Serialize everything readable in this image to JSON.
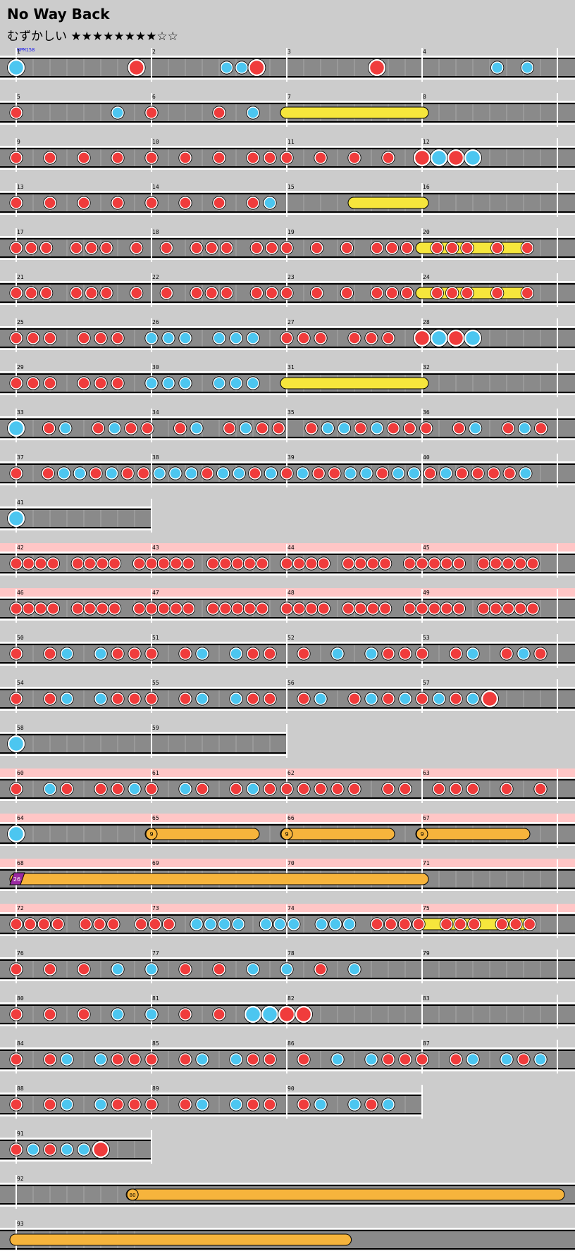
{
  "song": {
    "title": "No Way Back",
    "difficulty_label": "むずかしい",
    "stars_filled": 8,
    "stars_total": 10,
    "bpm_label": "BPM158"
  },
  "colors": {
    "background": "#cccccc",
    "lane": "#8a8a8a",
    "gogo_band": "#ffc6c6",
    "don": "#f03c3c",
    "ka": "#4cc6f0",
    "drumroll": "#f6e63c",
    "balloon": "#f6b43c",
    "kusudama": "#9a2aa0"
  },
  "note_key": {
    "d": "don (red)",
    "k": "ka (blue)",
    "D": "big don (red)",
    "K": "big ka (blue)"
  },
  "rows": [
    {
      "measures": [
        1,
        2,
        3,
        4
      ],
      "notes": "K-------D-----kkD-------D-------k-k-"
    },
    {
      "measures": [
        5,
        6,
        7,
        8
      ],
      "notes": "d-----k-d---d-k-"
    },
    {
      "measures": [
        9,
        10,
        11,
        12
      ],
      "notes": "d-d-d-d-d-d-d-ddd-d-d-d-DKDK"
    },
    {
      "measures": [
        13,
        14,
        15,
        16
      ],
      "notes": "d-d-d-d-d-d-d-dk"
    },
    {
      "measures": [
        17,
        18,
        19,
        20
      ],
      "notes": "ddd-ddd-d-d-ddd-ddd-d-d-ddd-ddd-d-d-"
    },
    {
      "measures": [
        21,
        22,
        23,
        24
      ],
      "notes": "ddd-ddd-d-d-ddd-ddd-d-d-ddd-ddd-d-d-"
    },
    {
      "measures": [
        25,
        26,
        27,
        28
      ],
      "notes": "ddd-ddd-kkk-kkk-ddd-ddd-DKDK"
    },
    {
      "measures": [
        29,
        30,
        31,
        32
      ],
      "notes": "ddd-ddd-kkk-kkk-"
    },
    {
      "measures": [
        33,
        34,
        35,
        36
      ],
      "notes": "K-dk-dkdd-dk-dkdd-dkkdkddd-dk-dkd"
    },
    {
      "measures": [
        37,
        38,
        39,
        40
      ],
      "notes": "d-dkkdkddkkkdkkdkdkddkkdkkdkddddk-"
    },
    {
      "measures": [
        41
      ],
      "notes": "K-------"
    },
    {
      "measures": [
        42,
        43,
        44,
        45
      ],
      "notes": "dddd-dddd-ddddd-ddddd-dddd-dddd-ddddd-ddddd-",
      "gogo": true
    },
    {
      "measures": [
        46,
        47,
        48,
        49
      ],
      "notes": "dddd-dddd-ddddd-ddddd-dddd-dddd-ddddd-ddddd-",
      "gogo": true
    },
    {
      "measures": [
        50,
        51,
        52,
        53
      ],
      "notes": "d-dk-kddd-dk-kdd-d-k-kddd-dk-dkd"
    },
    {
      "measures": [
        54,
        55,
        56,
        57
      ],
      "notes": "d-dk-kddd-dk-kdd-dk-dkdkdkdkD"
    },
    {
      "measures": [
        58,
        59
      ],
      "notes": "K-------"
    },
    {
      "measures": [
        60,
        61,
        62,
        63
      ],
      "notes": "d-kd-ddkd-kd-dkdddddd-dd-ddd-d-d",
      "gogo": true
    },
    {
      "measures": [
        64,
        65,
        66,
        67
      ],
      "notes": "K-------",
      "gogo": true,
      "balloons": [
        "9",
        "9",
        "9"
      ]
    },
    {
      "measures": [
        68,
        69,
        70,
        71
      ],
      "notes": "",
      "gogo": true,
      "kusudama": "26"
    },
    {
      "measures": [
        72,
        73,
        74,
        75
      ],
      "notes": "dddd-ddd-ddd-kkkk-kkk-kkk-dddd-ddd-ddd-",
      "gogo": true
    },
    {
      "measures": [
        76,
        77,
        78,
        79
      ],
      "notes": "d-d-d-k-k-d-d-k-k-d-k-"
    },
    {
      "measures": [
        80,
        81,
        82,
        83
      ],
      "notes": "d-d-d-k-k-d-d-KKDD"
    },
    {
      "measures": [
        84,
        85,
        86,
        87
      ],
      "notes": "d-dk-kddd-dk-kdd-d-k-kddd-dk-kdk"
    },
    {
      "measures": [
        88,
        89,
        90
      ],
      "notes": "d-dk-kddd-dk-kdd-dk-kdk"
    },
    {
      "measures": [
        91
      ],
      "notes": "dkdkkD"
    },
    {
      "measures": [
        92
      ],
      "notes": "",
      "balloon_count": "80"
    },
    {
      "measures": [
        93
      ],
      "notes": ""
    }
  ]
}
